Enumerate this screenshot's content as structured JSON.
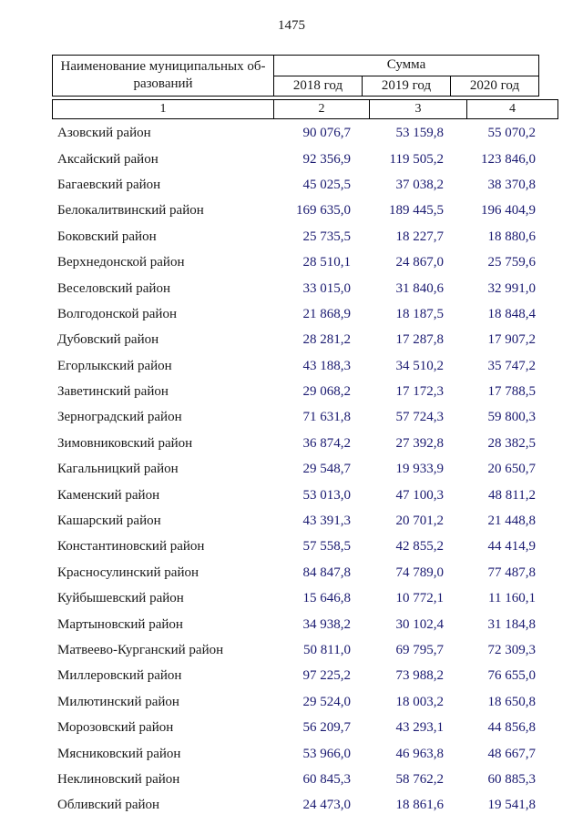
{
  "page_number": "1475",
  "colors": {
    "text": "#1a1a1a",
    "numbers": "#191970"
  },
  "table": {
    "header": {
      "name_col_line1": "Наименование муниципальных об-",
      "name_col_line2": "разований",
      "sum_label": "Сумма",
      "years": [
        "2018 год",
        "2019 год",
        "2020 год"
      ],
      "col_numbers": [
        "1",
        "2",
        "3",
        "4"
      ]
    },
    "rows": [
      {
        "name": "Азовский район",
        "y2018": "90 076,7",
        "y2019": "53 159,8",
        "y2020": "55 070,2"
      },
      {
        "name": "Аксайский район",
        "y2018": "92 356,9",
        "y2019": "119 505,2",
        "y2020": "123 846,0"
      },
      {
        "name": "Багаевский район",
        "y2018": "45 025,5",
        "y2019": "37 038,2",
        "y2020": "38 370,8"
      },
      {
        "name": "Белокалитвинский район",
        "y2018": "169 635,0",
        "y2019": "189 445,5",
        "y2020": "196 404,9"
      },
      {
        "name": "Боковский район",
        "y2018": "25 735,5",
        "y2019": "18 227,7",
        "y2020": "18 880,6"
      },
      {
        "name": "Верхнедонской район",
        "y2018": "28 510,1",
        "y2019": "24 867,0",
        "y2020": "25 759,6"
      },
      {
        "name": "Веселовский район",
        "y2018": "33 015,0",
        "y2019": "31 840,6",
        "y2020": "32 991,0"
      },
      {
        "name": "Волгодонской район",
        "y2018": "21 868,9",
        "y2019": "18 187,5",
        "y2020": "18 848,4"
      },
      {
        "name": "Дубовский район",
        "y2018": "28 281,2",
        "y2019": "17 287,8",
        "y2020": "17 907,2"
      },
      {
        "name": "Егорлыкский район",
        "y2018": "43 188,3",
        "y2019": "34 510,2",
        "y2020": "35 747,2"
      },
      {
        "name": "Заветинский район",
        "y2018": "29 068,2",
        "y2019": "17 172,3",
        "y2020": "17 788,5"
      },
      {
        "name": "Зерноградский район",
        "y2018": "71 631,8",
        "y2019": "57 724,3",
        "y2020": "59 800,3"
      },
      {
        "name": "Зимовниковский район",
        "y2018": "36 874,2",
        "y2019": "27 392,8",
        "y2020": "28 382,5"
      },
      {
        "name": "Кагальницкий район",
        "y2018": "29 548,7",
        "y2019": "19 933,9",
        "y2020": "20 650,7"
      },
      {
        "name": "Каменский район",
        "y2018": "53 013,0",
        "y2019": "47 100,3",
        "y2020": "48 811,2"
      },
      {
        "name": "Кашарский район",
        "y2018": "43 391,3",
        "y2019": "20 701,2",
        "y2020": "21 448,8"
      },
      {
        "name": "Константиновский район",
        "y2018": "57 558,5",
        "y2019": "42 855,2",
        "y2020": "44 414,9"
      },
      {
        "name": "Красносулинский район",
        "y2018": "84 847,8",
        "y2019": "74 789,0",
        "y2020": "77 487,8"
      },
      {
        "name": "Куйбышевский район",
        "y2018": "15 646,8",
        "y2019": "10 772,1",
        "y2020": "11 160,1"
      },
      {
        "name": "Мартыновский район",
        "y2018": "34 938,2",
        "y2019": "30 102,4",
        "y2020": "31 184,8"
      },
      {
        "name": "Матвеево-Курганский район",
        "y2018": "50 811,0",
        "y2019": "69 795,7",
        "y2020": "72 309,3"
      },
      {
        "name": "Миллеровский район",
        "y2018": "97 225,2",
        "y2019": "73 988,2",
        "y2020": "76 655,0"
      },
      {
        "name": "Милютинский район",
        "y2018": "29 524,0",
        "y2019": "18 003,2",
        "y2020": "18 650,8"
      },
      {
        "name": "Морозовский район",
        "y2018": "56 209,7",
        "y2019": "43 293,1",
        "y2020": "44 856,8"
      },
      {
        "name": "Мясниковский район",
        "y2018": "53 966,0",
        "y2019": "46 963,8",
        "y2020": "48 667,7"
      },
      {
        "name": "Неклиновский район",
        "y2018": "60 845,3",
        "y2019": "58 762,2",
        "y2020": "60 885,3"
      },
      {
        "name": "Обливский район",
        "y2018": "24 473,0",
        "y2019": "18 861,6",
        "y2020": "19 541,8"
      }
    ]
  }
}
